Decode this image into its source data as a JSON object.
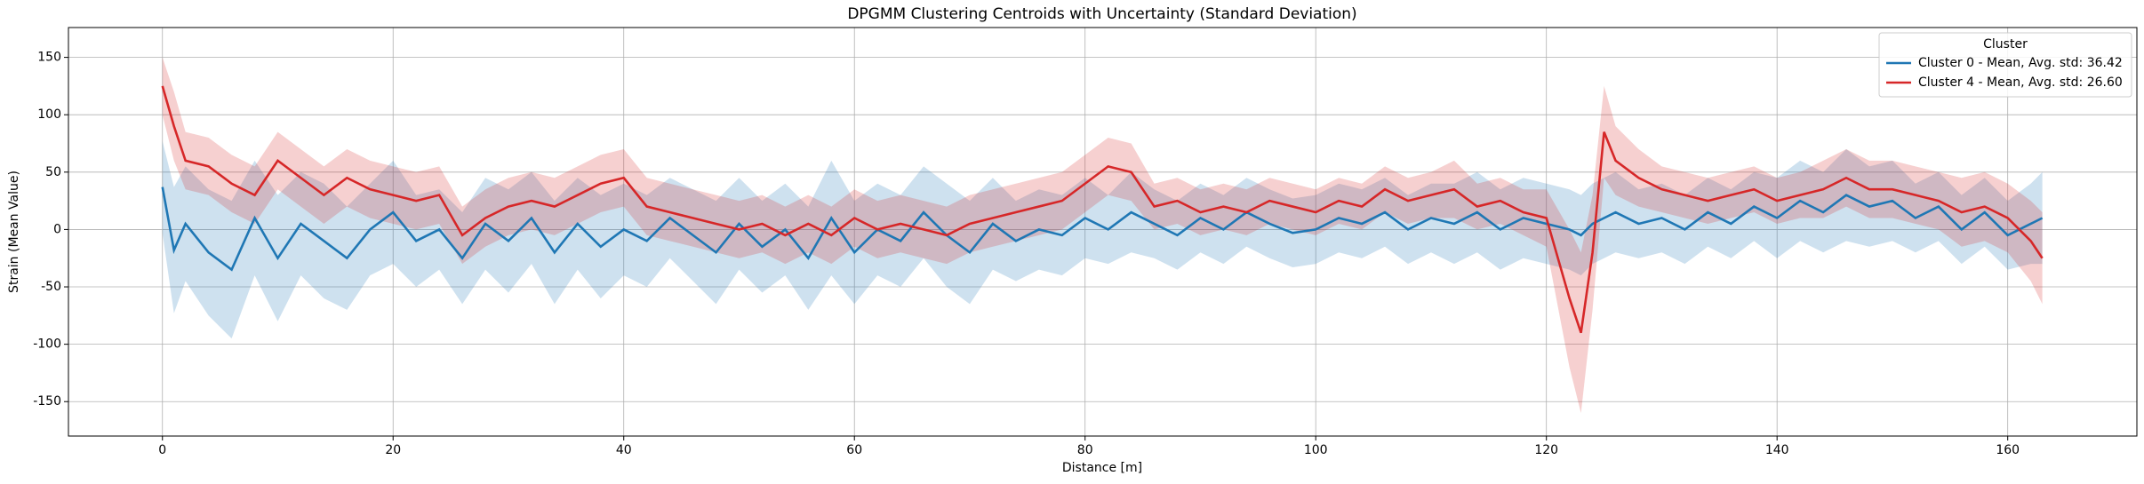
{
  "chart_data": {
    "type": "line",
    "title": "DPGMM Clustering Centroids with Uncertainty (Standard Deviation)",
    "x_label": "Distance [m]",
    "y_label": "Strain (Mean Value)",
    "legend_title": "Cluster",
    "legend": "upper right",
    "grid": true,
    "xlim": [
      -8.15,
      171.2
    ],
    "ylim": [
      -180,
      176
    ],
    "xticks": [
      0,
      20,
      40,
      60,
      80,
      100,
      120,
      140,
      160
    ],
    "yticks": [
      -150,
      -100,
      -50,
      0,
      50,
      100,
      150
    ],
    "x": [
      0,
      1,
      2,
      4,
      6,
      8,
      10,
      12,
      14,
      16,
      18,
      20,
      22,
      24,
      26,
      28,
      30,
      32,
      34,
      36,
      38,
      40,
      42,
      44,
      46,
      48,
      50,
      52,
      54,
      56,
      58,
      60,
      62,
      64,
      66,
      68,
      70,
      72,
      74,
      76,
      78,
      80,
      82,
      84,
      86,
      88,
      90,
      92,
      94,
      96,
      98,
      100,
      102,
      104,
      106,
      108,
      110,
      112,
      114,
      116,
      118,
      120,
      122,
      123,
      124,
      125,
      126,
      128,
      130,
      132,
      134,
      136,
      138,
      140,
      142,
      144,
      146,
      148,
      150,
      152,
      154,
      156,
      158,
      160,
      162,
      163
    ],
    "series": [
      {
        "name": "Cluster 0 - Mean, Avg. std: 36.42",
        "color": "#1f77b4",
        "values": [
          37,
          -18,
          5,
          -20,
          -35,
          10,
          -25,
          5,
          -10,
          -25,
          0,
          15,
          -10,
          0,
          -25,
          5,
          -10,
          10,
          -20,
          5,
          -15,
          0,
          -10,
          10,
          -5,
          -20,
          5,
          -15,
          0,
          -25,
          10,
          -20,
          0,
          -10,
          15,
          -5,
          -20,
          5,
          -10,
          0,
          -5,
          10,
          0,
          15,
          5,
          -5,
          10,
          0,
          15,
          5,
          -3,
          0,
          10,
          5,
          15,
          0,
          10,
          5,
          15,
          0,
          10,
          5,
          0,
          -5,
          5,
          10,
          15,
          5,
          10,
          0,
          15,
          5,
          20,
          10,
          25,
          15,
          30,
          20,
          25,
          10,
          20,
          0,
          15,
          -5,
          5,
          10
        ],
        "std": [
          40,
          55,
          50,
          55,
          60,
          50,
          55,
          45,
          50,
          45,
          40,
          45,
          40,
          35,
          40,
          40,
          45,
          40,
          45,
          40,
          45,
          40,
          40,
          35,
          40,
          45,
          40,
          40,
          40,
          45,
          50,
          45,
          40,
          40,
          40,
          45,
          45,
          40,
          35,
          35,
          35,
          35,
          30,
          35,
          30,
          30,
          30,
          30,
          30,
          30,
          30,
          30,
          30,
          30,
          30,
          30,
          30,
          35,
          35,
          35,
          35,
          35,
          35,
          35,
          35,
          35,
          35,
          30,
          30,
          30,
          30,
          30,
          30,
          35,
          35,
          35,
          40,
          35,
          35,
          30,
          30,
          30,
          30,
          30,
          35,
          40
        ]
      },
      {
        "name": "Cluster 4 - Mean, Avg. std: 26.60",
        "color": "#d62728",
        "values": [
          125,
          90,
          60,
          55,
          40,
          30,
          60,
          45,
          30,
          45,
          35,
          30,
          25,
          30,
          -5,
          10,
          20,
          25,
          20,
          30,
          40,
          45,
          20,
          15,
          10,
          5,
          0,
          5,
          -5,
          5,
          -5,
          10,
          0,
          5,
          0,
          -5,
          5,
          10,
          15,
          20,
          25,
          40,
          55,
          50,
          20,
          25,
          15,
          20,
          15,
          25,
          20,
          15,
          25,
          20,
          35,
          25,
          30,
          35,
          20,
          25,
          15,
          10,
          -60,
          -90,
          -20,
          85,
          60,
          45,
          35,
          30,
          25,
          30,
          35,
          25,
          30,
          35,
          45,
          35,
          35,
          30,
          25,
          15,
          20,
          10,
          -10,
          -25
        ],
        "std": [
          25,
          30,
          25,
          25,
          25,
          25,
          25,
          25,
          25,
          25,
          25,
          25,
          25,
          25,
          25,
          25,
          25,
          25,
          25,
          25,
          25,
          25,
          25,
          25,
          25,
          25,
          25,
          25,
          25,
          25,
          25,
          25,
          25,
          25,
          25,
          25,
          25,
          25,
          25,
          25,
          25,
          25,
          25,
          25,
          20,
          20,
          20,
          20,
          20,
          20,
          20,
          20,
          20,
          20,
          20,
          20,
          20,
          25,
          20,
          20,
          20,
          25,
          60,
          70,
          50,
          40,
          30,
          25,
          20,
          20,
          20,
          20,
          20,
          20,
          20,
          25,
          25,
          25,
          25,
          25,
          25,
          30,
          30,
          30,
          35,
          40
        ]
      }
    ]
  }
}
